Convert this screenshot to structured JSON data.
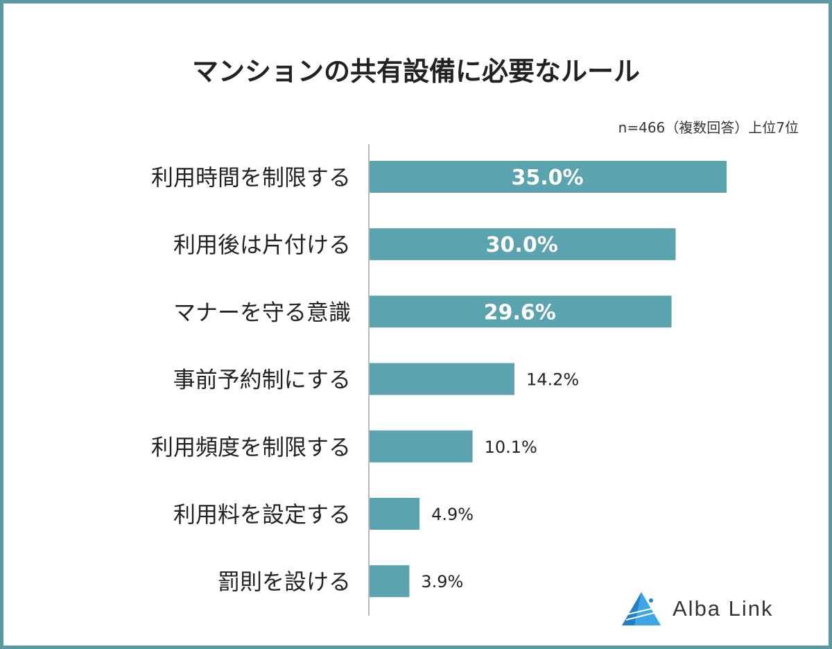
{
  "chart_data": {
    "type": "bar",
    "orientation": "horizontal",
    "title": "マンションの共有設備に必要なルール",
    "note": "n=466（複数回答）上位7位",
    "categories": [
      "利用時間を制限する",
      "利用後は片付ける",
      "マナーを守る意識",
      "事前予約制にする",
      "利用頻度を制限する",
      "利用料を設定する",
      "罰則を設ける"
    ],
    "values": [
      35.0,
      30.0,
      29.6,
      14.2,
      10.1,
      4.9,
      3.9
    ],
    "labels": [
      "35.0%",
      "30.0%",
      "29.6%",
      "14.2%",
      "10.1%",
      "4.9%",
      "3.9%"
    ],
    "xlim": [
      0,
      35
    ],
    "grid": false,
    "bar_color": "#5ba3ae"
  },
  "logo": {
    "text": "Alba Link"
  }
}
